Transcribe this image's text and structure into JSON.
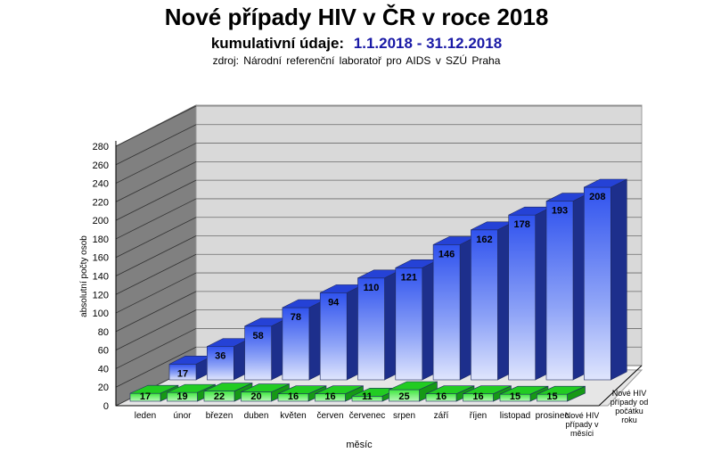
{
  "title": "Nové případy HIV v ČR v roce 2018",
  "subtitle": {
    "label": "kumulativní údaje:",
    "range": "1.1.2018 - 31.12.2018"
  },
  "source": "zdroj: Národní referenční laboratoř pro AIDS v SZÚ Praha",
  "colors": {
    "cumulative": "#3f63f2",
    "monthly": "#3ee83e",
    "wall": "#d9d9d9",
    "floor": "#e6e6e6"
  },
  "chart_data": {
    "type": "bar",
    "title": "Nové případy HIV v ČR v roce 2018",
    "xlabel": "měsíc",
    "ylabel": "absolutní počty osob",
    "ylim": [
      0,
      280
    ],
    "yticks": [
      0,
      20,
      40,
      60,
      80,
      100,
      120,
      140,
      160,
      180,
      200,
      220,
      240,
      260,
      280
    ],
    "grid": true,
    "categories": [
      "leden",
      "únor",
      "březen",
      "duben",
      "květen",
      "červen",
      "červenec",
      "srpen",
      "září",
      "říjen",
      "listopad",
      "prosinec"
    ],
    "series": [
      {
        "name": "Nové HIV případy od počátku roku",
        "values": [
          17,
          36,
          58,
          78,
          94,
          110,
          121,
          146,
          162,
          178,
          193,
          208
        ]
      },
      {
        "name": "Nové HIV případy v měsíci",
        "values": [
          17,
          19,
          22,
          20,
          16,
          16,
          11,
          25,
          16,
          16,
          15,
          15
        ]
      }
    ]
  }
}
